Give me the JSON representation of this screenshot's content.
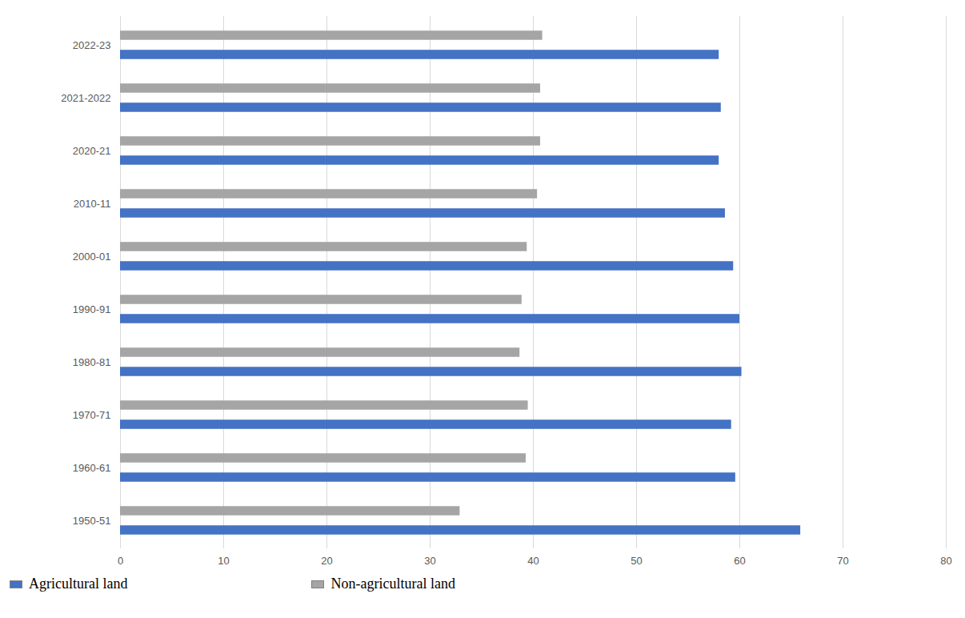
{
  "chart_data": {
    "type": "bar",
    "orientation": "horizontal",
    "grid": true,
    "legend": "bottom",
    "categories": [
      "1950-51",
      "1960-61",
      "1970-71",
      "1980-81",
      "1990-91",
      "2000-01",
      "2010-11",
      "2020-21",
      "2021-2022",
      "2022-23"
    ],
    "series": [
      {
        "name": "Agricultural land",
        "color": "#4472c4",
        "values": [
          65.9,
          59.6,
          59.2,
          60.2,
          60.0,
          59.4,
          58.6,
          58.0,
          58.2,
          58.0
        ]
      },
      {
        "name": "Non-agricultural land",
        "color": "#a5a5a5",
        "values": [
          32.9,
          39.3,
          39.5,
          38.7,
          38.9,
          39.4,
          40.4,
          40.7,
          40.7,
          40.9
        ]
      }
    ],
    "xlim": [
      0,
      80
    ],
    "xticks": [
      0,
      10,
      20,
      30,
      40,
      50,
      60,
      70,
      80
    ]
  }
}
